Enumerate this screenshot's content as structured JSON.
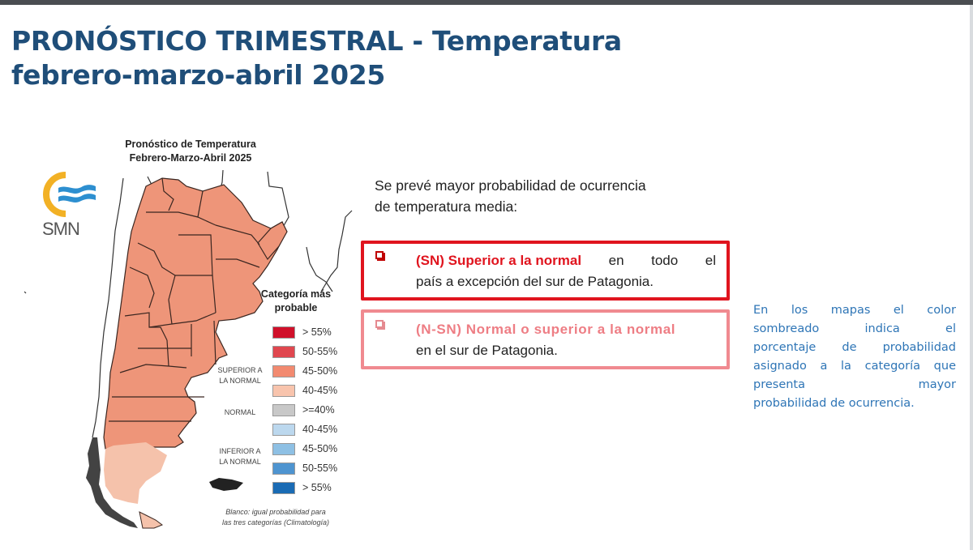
{
  "slide": {
    "title_line1": "PRONÓSTICO TRIMESTRAL - Temperatura",
    "title_line2": "febrero-marzo-abril 2025"
  },
  "map": {
    "logo_text": "SMN",
    "title_line1": "Pronóstico de Temperatura",
    "title_line2": "Febrero-Marzo-Abril 2025",
    "colors": {
      "main_region": "#ee9579",
      "south_patagonia": "#f5c2ab",
      "border": "#3a2620",
      "neighbor_outline": "#333333"
    }
  },
  "legend": {
    "title_line1": "Categoría más",
    "title_line2": "probable",
    "categories": {
      "superior": [
        "SUPERIOR A",
        "LA NORMAL"
      ],
      "normal": [
        "NORMAL"
      ],
      "inferior": [
        "INFERIOR A",
        "LA NORMAL"
      ]
    },
    "items": [
      {
        "label": "> 55%",
        "color": "#d0102a"
      },
      {
        "label": "50-55%",
        "color": "#e0474f"
      },
      {
        "label": "45-50%",
        "color": "#f28a70"
      },
      {
        "label": "40-45%",
        "color": "#f8c4ad"
      },
      {
        "label": ">=40%",
        "color": "#c8c8c8"
      },
      {
        "label": "40-45%",
        "color": "#bcd8ee"
      },
      {
        "label": "45-50%",
        "color": "#8ec0e4"
      },
      {
        "label": "50-55%",
        "color": "#4e94d0"
      },
      {
        "label": "> 55%",
        "color": "#1a6bb4"
      }
    ],
    "note_line1": "Blanco: igual probabilidad para",
    "note_line2": "las tres categorías (Climatología)"
  },
  "forecast": {
    "intro_line1": "Se prevé mayor probabilidad de ocurrencia",
    "intro_line2": "de temperatura media:",
    "items": [
      {
        "label": "(SN) Superior a la normal",
        "line1_rest": [
          "en",
          "todo",
          "el"
        ],
        "line2": "país a excepción del sur de Patagonia.",
        "accent": "#e0141e"
      },
      {
        "label": "(N-SN) Normal o superior a la normal",
        "line2": "en el sur de Patagonia.",
        "accent": "#ee7d84"
      }
    ]
  },
  "side_note": {
    "lines": [
      "En los mapas el color",
      "sombreado indica el",
      "porcentaje de probabilidad",
      "asignado a la categoría que",
      "presenta mayor",
      "probabilidad de ocurrencia."
    ],
    "color": "#2e75b6"
  }
}
